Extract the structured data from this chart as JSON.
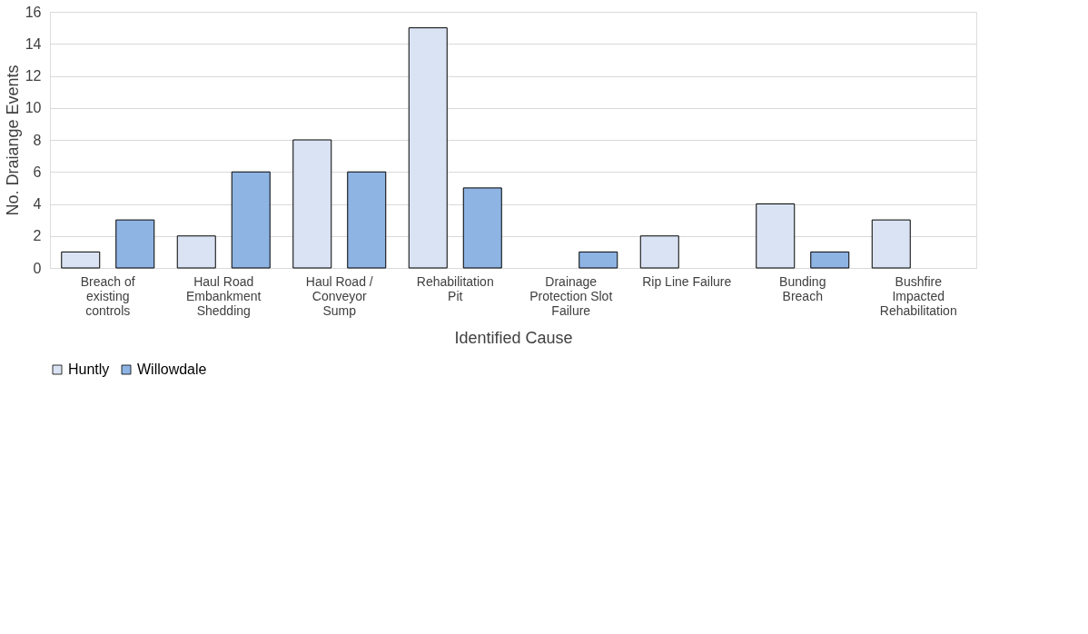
{
  "chart_data": {
    "type": "bar",
    "xlabel": "Identified Cause",
    "ylabel": "No. Draiange Events",
    "categories": [
      "Breach of\nexisting\ncontrols",
      "Haul Road\nEmbankment\nShedding",
      "Haul Road /\nConveyor\nSump",
      "Rehabilitation\nPit",
      "Drainage\nProtection Slot\nFailure",
      "Rip Line Failure",
      "Bunding\nBreach",
      "Bushfire\nImpacted\nRehabilitation"
    ],
    "series": [
      {
        "name": "Huntly",
        "color": "#dae3f3",
        "values": [
          1,
          2,
          8,
          15,
          0,
          2,
          4,
          3
        ]
      },
      {
        "name": "Willowdale",
        "color": "#8eb4e3",
        "values": [
          3,
          6,
          6,
          5,
          1,
          0,
          1,
          0
        ]
      }
    ],
    "ylim": [
      0,
      16
    ],
    "yticks": [
      0,
      2,
      4,
      6,
      8,
      10,
      12,
      14,
      16
    ],
    "grid": "y",
    "legend": "bottom"
  }
}
